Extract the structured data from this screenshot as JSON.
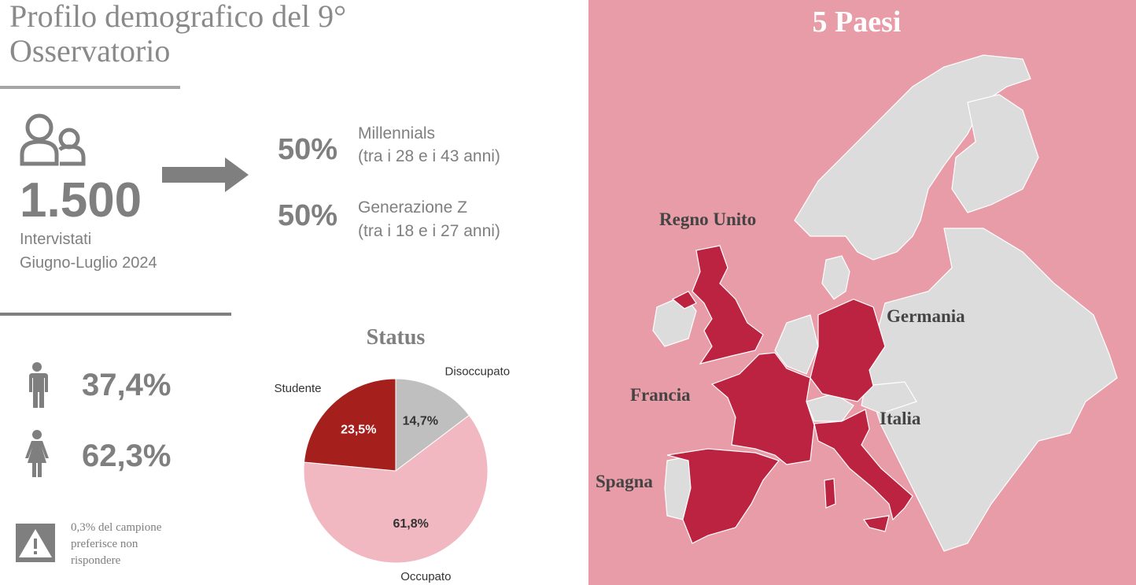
{
  "header": {
    "title_lines": [
      "Profilo demografico del 9°",
      "Osservatorio"
    ]
  },
  "sample": {
    "count": "1.500",
    "lines": [
      "Intervistati",
      "Giugno-Luglio 2024"
    ]
  },
  "generations": [
    {
      "share": "50%",
      "name": "Millennials",
      "range": "(tra i 28 e i 43 anni)"
    },
    {
      "share": "50%",
      "name": "Generazione Z",
      "range": "(tra i 18 e i 27 anni)"
    }
  ],
  "gender": {
    "male": "37,4%",
    "female": "62,3%"
  },
  "note": {
    "lines": [
      "0,3% del campione",
      "preferisce non",
      "rispondere"
    ]
  },
  "chart_data": {
    "type": "pie",
    "title": "Status",
    "categories": [
      "Disoccupato",
      "Occupato",
      "Studente"
    ],
    "values": [
      14.7,
      61.8,
      23.5
    ],
    "value_labels": [
      "14,7%",
      "61,8%",
      "23,5%"
    ],
    "colors": [
      "#bfbfbf",
      "#f1b8c1",
      "#a51f1c"
    ]
  },
  "map": {
    "title": "5 Paesi",
    "countries": [
      "Regno Unito",
      "Germania",
      "Francia",
      "Italia",
      "Spagna"
    ]
  }
}
